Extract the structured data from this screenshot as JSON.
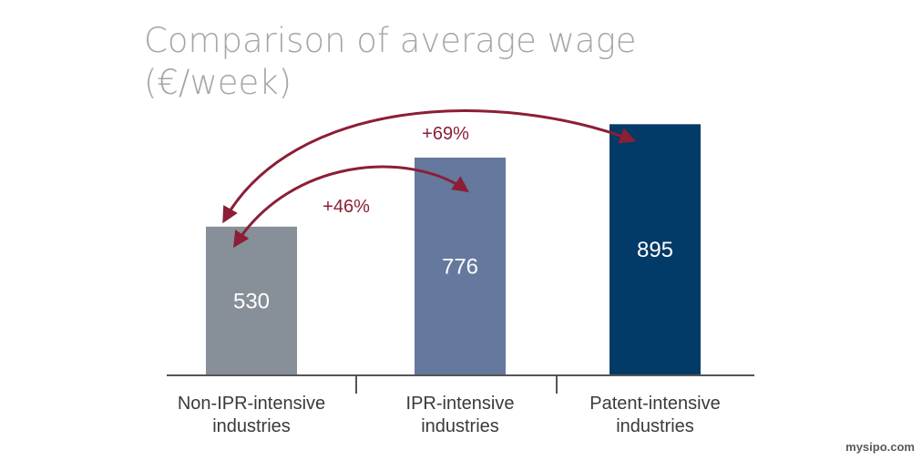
{
  "chart_data": {
    "type": "bar",
    "title": "Comparison of average wage (€/week)",
    "categories": [
      "Non-IPR-intensive industries",
      "IPR-intensive industries",
      "Patent-intensive industries"
    ],
    "category_lines": [
      [
        "Non-IPR-intensive",
        "industries"
      ],
      [
        "IPR-intensive",
        "industries"
      ],
      [
        "Patent-intensive",
        "industries"
      ]
    ],
    "values": [
      530,
      776,
      895
    ],
    "value_labels": [
      "530",
      "776",
      "895"
    ],
    "bar_colors": [
      "#878f98",
      "#65789d",
      "#023a68"
    ],
    "ylim": [
      0,
      1000
    ],
    "grid": false,
    "annotations": [
      {
        "text": "+46%",
        "from": 0,
        "to": 1
      },
      {
        "text": "+69%",
        "from": 0,
        "to": 2
      }
    ],
    "annotation_color": "#8b1f35"
  },
  "watermark": "mysipo.com"
}
